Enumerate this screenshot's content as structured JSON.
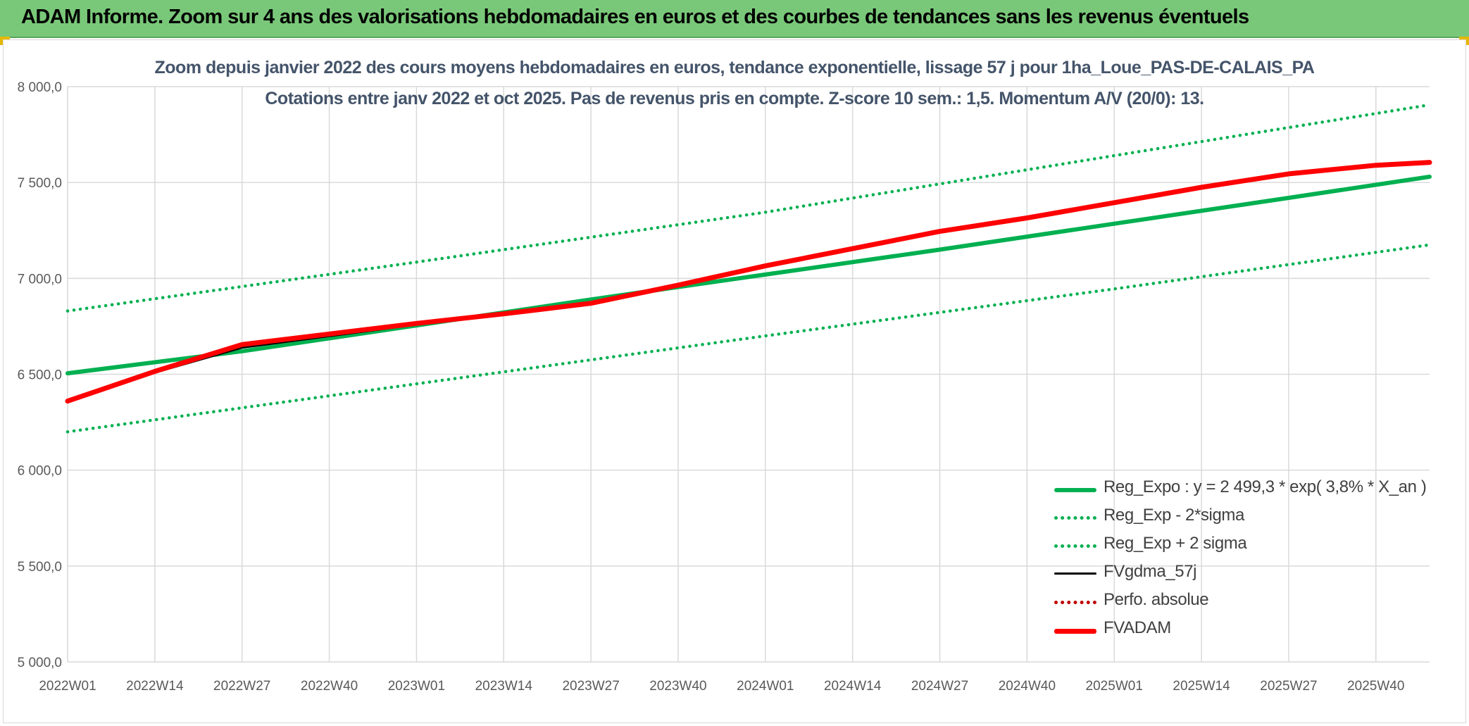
{
  "banner": {
    "title": "ADAM Informe. Zoom sur 4 ans des valorisations hebdomadaires en euros et des courbes de tendances sans les revenus éventuels"
  },
  "colors": {
    "banner_bg": "#79c879",
    "reg_expo": "#00b050",
    "fvgdma": "#000000",
    "fvadam": "#ff0000",
    "perfo": "#c00000",
    "title_text": "#44546a",
    "axis_text": "#595959",
    "grid": "#d9d9d9"
  },
  "chart_data": {
    "type": "line",
    "title": "Zoom depuis janvier 2022 des cours moyens hebdomadaires en euros, tendance exponentielle, lissage 57 j pour 1ha_Loue_PAS-DE-CALAIS_PA",
    "subtitle": "Cotations entre janv 2022 et oct 2025. Pas de revenus pris en compte. Z-score 10 sem.: 1,5. Momentum A/V (20/0): 13.",
    "xlabel": "",
    "ylabel": "",
    "ylim": [
      5000,
      8000
    ],
    "y_ticks": [
      {
        "value": 8000,
        "label": "8 000,0"
      },
      {
        "value": 7500,
        "label": "7 500,0"
      },
      {
        "value": 7000,
        "label": "7 000,0"
      },
      {
        "value": 6500,
        "label": "6 500,0"
      },
      {
        "value": 6000,
        "label": "6 000,0"
      },
      {
        "value": 5500,
        "label": "5 500,0"
      },
      {
        "value": 5000,
        "label": "5 000,0"
      }
    ],
    "x_ticks": [
      "2022W01",
      "2022W14",
      "2022W27",
      "2022W40",
      "2023W01",
      "2023W14",
      "2023W27",
      "2023W40",
      "2024W01",
      "2024W14",
      "2024W27",
      "2024W40",
      "2025W01",
      "2025W14",
      "2025W27",
      "2025W40"
    ],
    "x_range_weeks": [
      0,
      203
    ],
    "grid": true,
    "legend_position": "bottom-right",
    "series": [
      {
        "name": "Reg_Expo : y = 2 499,3 * exp( 3,8% *  X_an )",
        "style": "solid-thick",
        "color": "#00b050",
        "points": [
          [
            0,
            6505
          ],
          [
            26,
            6620
          ],
          [
            52,
            6755
          ],
          [
            78,
            6890
          ],
          [
            104,
            7020
          ],
          [
            130,
            7150
          ],
          [
            156,
            7285
          ],
          [
            182,
            7420
          ],
          [
            203,
            7530
          ]
        ]
      },
      {
        "name": "Reg_Exp - 2*sigma",
        "style": "dotted",
        "color": "#00b050",
        "points": [
          [
            0,
            6200
          ],
          [
            52,
            6450
          ],
          [
            104,
            6700
          ],
          [
            156,
            6945
          ],
          [
            203,
            7175
          ]
        ]
      },
      {
        "name": "Reg_Exp + 2 sigma",
        "style": "dotted",
        "color": "#00b050",
        "points": [
          [
            0,
            6830
          ],
          [
            52,
            7085
          ],
          [
            104,
            7345
          ],
          [
            156,
            7640
          ],
          [
            203,
            7905
          ]
        ]
      },
      {
        "name": "FVgdma_57j",
        "style": "solid",
        "color": "#000000",
        "points": [
          [
            0,
            6360
          ],
          [
            13,
            6510
          ],
          [
            26,
            6640
          ],
          [
            39,
            6700
          ],
          [
            52,
            6760
          ],
          [
            65,
            6810
          ],
          [
            78,
            6870
          ],
          [
            91,
            6960
          ],
          [
            104,
            7060
          ],
          [
            117,
            7150
          ],
          [
            130,
            7240
          ],
          [
            143,
            7310
          ],
          [
            156,
            7390
          ],
          [
            169,
            7470
          ],
          [
            182,
            7540
          ],
          [
            195,
            7585
          ],
          [
            203,
            7600
          ]
        ]
      },
      {
        "name": "Perfo. absolue",
        "style": "dotted",
        "color": "#c00000",
        "points": []
      },
      {
        "name": "FVADAM",
        "style": "solid-thick",
        "color": "#ff0000",
        "points": [
          [
            0,
            6360
          ],
          [
            13,
            6515
          ],
          [
            26,
            6655
          ],
          [
            39,
            6710
          ],
          [
            52,
            6765
          ],
          [
            65,
            6815
          ],
          [
            78,
            6870
          ],
          [
            91,
            6965
          ],
          [
            104,
            7065
          ],
          [
            117,
            7155
          ],
          [
            130,
            7245
          ],
          [
            143,
            7315
          ],
          [
            156,
            7395
          ],
          [
            169,
            7475
          ],
          [
            182,
            7545
          ],
          [
            195,
            7590
          ],
          [
            203,
            7605
          ]
        ]
      }
    ]
  }
}
